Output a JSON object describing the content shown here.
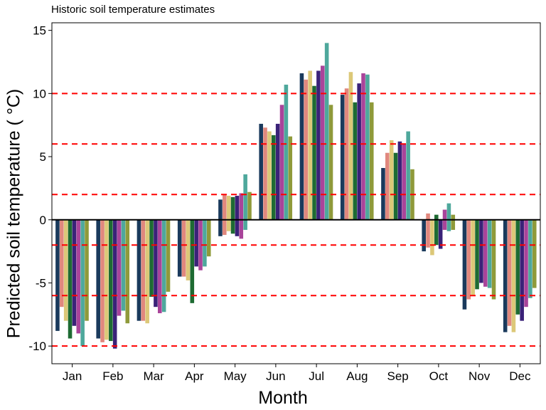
{
  "chart_data": {
    "type": "bar",
    "title": "Historic soil temperature estimates",
    "xlabel": "Month",
    "ylabel": "Predicted soil temperature ( °C)",
    "categories": [
      "Jan",
      "Feb",
      "Mar",
      "Apr",
      "May",
      "Jun",
      "Jul",
      "Aug",
      "Sep",
      "Oct",
      "Nov",
      "Dec"
    ],
    "ylim": [
      -11.4,
      15.6
    ],
    "yticks": [
      15,
      10,
      5,
      0,
      -5,
      -10
    ],
    "reference_lines": [
      -10,
      -6,
      -2,
      2,
      6,
      10
    ],
    "zero_line": 0,
    "grid": false,
    "legend": "none",
    "series": [
      {
        "color": "#1a3a5c",
        "low": [
          -8.8,
          -9.4,
          -8.0,
          -4.5,
          -1.3,
          0.0,
          0.0,
          0.0,
          0.0,
          -2.5,
          -7.1,
          -8.9
        ],
        "high": [
          0.0,
          0.0,
          0.0,
          0.0,
          1.6,
          7.6,
          11.6,
          9.9,
          4.1,
          0.0,
          0.0,
          0.0
        ]
      },
      {
        "color": "#e0887e",
        "low": [
          -6.9,
          -9.7,
          -8.0,
          -4.5,
          -1.2,
          0.0,
          0.0,
          0.0,
          0.0,
          -2.2,
          -6.3,
          -8.4
        ],
        "high": [
          0.0,
          0.0,
          0.0,
          0.0,
          2.0,
          7.3,
          11.1,
          10.4,
          5.3,
          0.5,
          0.0,
          0.0
        ]
      },
      {
        "color": "#dcc878",
        "low": [
          -8.0,
          -9.5,
          -8.2,
          -4.8,
          -0.9,
          0.0,
          0.0,
          0.0,
          0.0,
          -2.8,
          -6.0,
          -8.9
        ],
        "high": [
          0.0,
          0.0,
          0.0,
          0.0,
          1.9,
          7.0,
          11.8,
          11.7,
          6.3,
          0.0,
          0.0,
          0.0
        ]
      },
      {
        "color": "#1e6b32",
        "low": [
          -9.4,
          -9.6,
          -6.1,
          -6.6,
          -1.1,
          0.0,
          0.0,
          0.0,
          0.0,
          -2.0,
          -5.5,
          -7.5
        ],
        "high": [
          0.0,
          0.0,
          0.0,
          0.0,
          1.8,
          6.7,
          10.6,
          9.3,
          5.3,
          0.4,
          0.0,
          0.0
        ]
      },
      {
        "color": "#3a2278",
        "low": [
          -8.4,
          -10.2,
          -6.9,
          -3.7,
          -1.3,
          0.0,
          0.0,
          0.0,
          0.0,
          -2.3,
          -5.0,
          -8.0
        ],
        "high": [
          0.0,
          0.0,
          0.0,
          0.0,
          1.9,
          7.6,
          11.8,
          10.8,
          6.2,
          0.0,
          0.0,
          0.0
        ]
      },
      {
        "color": "#a9449a",
        "low": [
          -9.0,
          -7.6,
          -7.4,
          -4.0,
          -1.5,
          0.0,
          0.0,
          0.0,
          0.0,
          -0.8,
          -5.3,
          -6.9
        ],
        "high": [
          0.0,
          0.0,
          0.0,
          0.0,
          2.1,
          9.1,
          12.2,
          11.6,
          6.0,
          0.8,
          0.0,
          0.0
        ]
      },
      {
        "color": "#4ea89c",
        "low": [
          -10.0,
          -7.2,
          -7.3,
          -3.7,
          -0.8,
          0.0,
          0.0,
          0.0,
          0.0,
          -0.9,
          -5.4,
          -6.2
        ],
        "high": [
          0.0,
          0.0,
          0.0,
          0.0,
          3.6,
          10.7,
          14.0,
          11.5,
          7.0,
          1.3,
          0.0,
          0.0
        ]
      },
      {
        "color": "#8f9a3a",
        "low": [
          -8.0,
          -8.2,
          -5.7,
          -2.9,
          0.0,
          0.0,
          0.0,
          0.0,
          0.0,
          -0.8,
          -6.3,
          -5.4
        ],
        "high": [
          0.0,
          0.0,
          0.0,
          0.0,
          2.2,
          6.6,
          9.1,
          9.3,
          4.0,
          0.4,
          0.0,
          0.0
        ]
      }
    ]
  }
}
